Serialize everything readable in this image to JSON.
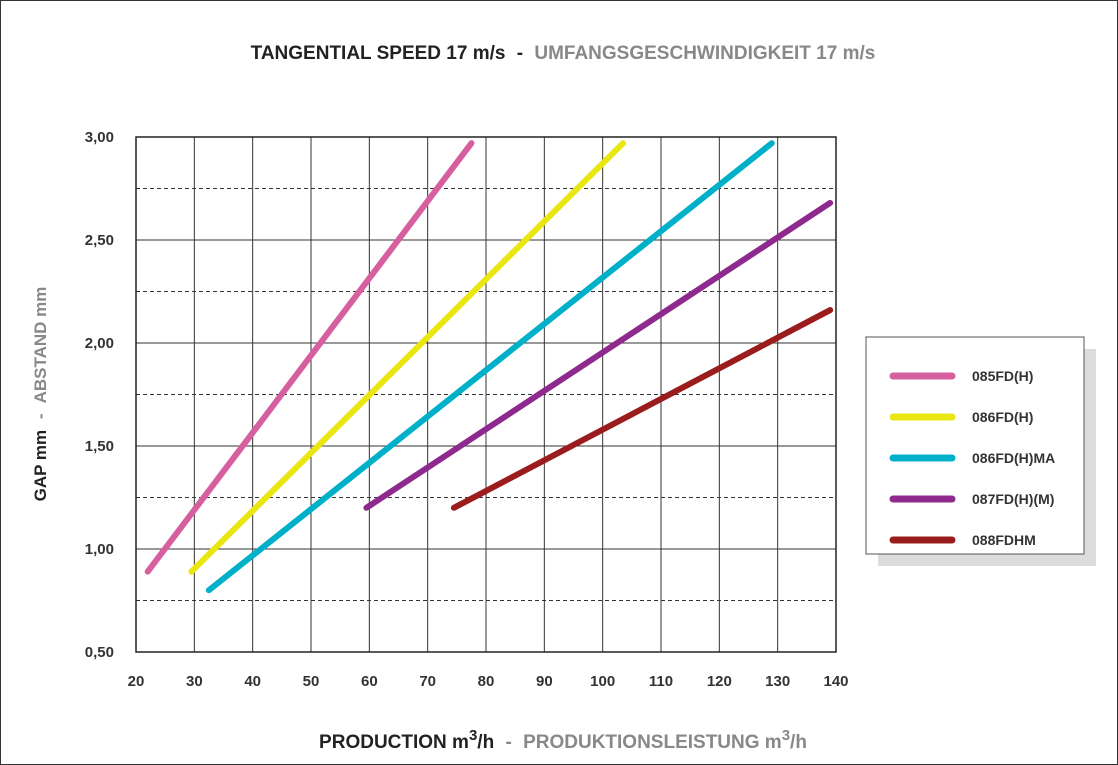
{
  "chart_data": {
    "type": "line",
    "title": "TANGENTIAL SPEED 17 m/s",
    "subtitle": "UMFANGSGESCHWINDIGKEIT 17 m/s",
    "separator": "-",
    "xlabel": {
      "primary_prefix": "PRODUCTION m",
      "primary_sup": "3",
      "primary_suffix": "/h",
      "secondary_prefix": "PRODUKTIONSLEISTUNG m",
      "secondary_sup": "3",
      "secondary_suffix": "/h"
    },
    "ylabel": {
      "primary": "GAP mm",
      "secondary": "ABSTAND mm"
    },
    "xlim": [
      20,
      140
    ],
    "ylim": [
      0.5,
      3.0
    ],
    "x_ticks": [
      20,
      30,
      40,
      50,
      60,
      70,
      80,
      90,
      100,
      110,
      120,
      130,
      140
    ],
    "x_tick_labels": [
      "20",
      "30",
      "40",
      "50",
      "60",
      "70",
      "80",
      "90",
      "100",
      "110",
      "120",
      "130",
      "140"
    ],
    "y_ticks": [
      0.5,
      1.0,
      1.5,
      2.0,
      2.5,
      3.0
    ],
    "y_tick_labels": [
      "0,50",
      "1,00",
      "1,50",
      "2,00",
      "2,50",
      "3,00"
    ],
    "y_minor_dashed": [
      0.75,
      1.25,
      1.75,
      2.25,
      2.75
    ],
    "grid": true,
    "legend_position": "right",
    "series": [
      {
        "name": "085FD(H)",
        "color": "#d6609f",
        "points": [
          [
            22,
            0.89
          ],
          [
            77.5,
            2.97
          ]
        ]
      },
      {
        "name": "086FD(H)",
        "color": "#e9e612",
        "points": [
          [
            29.5,
            0.89
          ],
          [
            103.5,
            2.97
          ]
        ]
      },
      {
        "name": "086FD(H)MA",
        "color": "#00b0c8",
        "points": [
          [
            32.5,
            0.8
          ],
          [
            129,
            2.97
          ]
        ]
      },
      {
        "name": "087FD(H)(M)",
        "color": "#8e2a8e",
        "points": [
          [
            59.5,
            1.2
          ],
          [
            139,
            2.68
          ]
        ]
      },
      {
        "name": "088FDHM",
        "color": "#9b1c1c",
        "points": [
          [
            74.5,
            1.2
          ],
          [
            139,
            2.16
          ]
        ]
      }
    ]
  }
}
